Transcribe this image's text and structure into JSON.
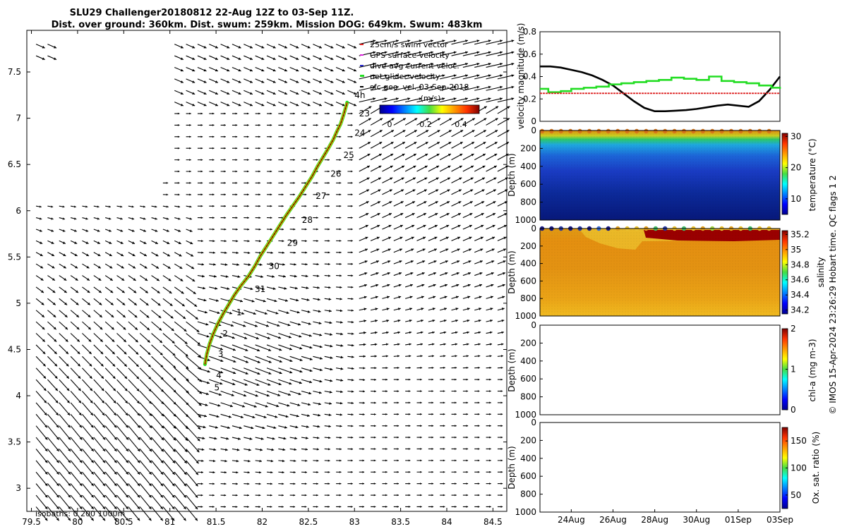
{
  "header": {
    "title_line1": "SLU29 Challenger20180812 22-Aug 12Z to 03-Sep 11Z.",
    "title_line2": "Dist. over ground: 360km. Dist. swum: 259km. Mission DOG: 649km. Swum: 483km"
  },
  "footer": {
    "credit": "© IMOS 15-Apr-2024 23:26:29 Hobart time. QC flags 1  2"
  },
  "colors": {
    "net_velocity": "#22dd22",
    "swim_vector": "#dd2222",
    "gps_velocity": "#dd22dd",
    "dive_avg": "#2222cc",
    "track": "#e68a00",
    "arrow": "#000000"
  },
  "chart_data": [
    {
      "id": "map",
      "type": "scatter",
      "subtype": "quiver-map",
      "title": "SLU29 Challenger20180812 22-Aug 12Z to 03-Sep 11Z.",
      "xlim": [
        79.45,
        84.65
      ],
      "ylim": [
        2.75,
        7.95
      ],
      "xticks": [
        79.5,
        80,
        80.5,
        81,
        81.5,
        82,
        82.5,
        83,
        83.5,
        84,
        84.5
      ],
      "xtick_labels": [
        "79.5",
        "80",
        "80.5",
        "81",
        "81.5",
        "82",
        "82.5",
        "83",
        "83.5",
        "84",
        "84.5"
      ],
      "yticks": [
        3,
        3.5,
        4,
        4.5,
        5,
        5.5,
        6,
        6.5,
        7,
        7.5
      ],
      "ytick_labels": [
        "3",
        "3.5",
        "4",
        "4.5",
        "5",
        "5.5",
        "6",
        "6.5",
        "7",
        "7.5"
      ],
      "legend": [
        {
          "label": "25cm/s swim vector",
          "color": "#dd2222"
        },
        {
          "label": "GPS surface velocity",
          "color": "#dd22dd"
        },
        {
          "label": "dive-avg current veloc.",
          "color": "#2222cc"
        },
        {
          "label": "net glider velocity",
          "color": "#22dd22"
        },
        {
          "label": "sfc geo. vel. 03-Sep-2018",
          "color": "#000000"
        }
      ],
      "colorbar": {
        "label": "(m/s)",
        "ticks": [
          "0",
          "0.2",
          "0.4"
        ],
        "range": [
          0,
          0.45
        ]
      },
      "isobath_label": "isobaths: 0   200  1000m",
      "track": {
        "lon": [
          81.38,
          81.4,
          81.43,
          81.47,
          81.52,
          81.58,
          81.64,
          81.7,
          81.77,
          81.85,
          81.92,
          81.98,
          82.05,
          82.12,
          82.19,
          82.26,
          82.33,
          82.4,
          82.47,
          82.54,
          82.6,
          82.66,
          82.72,
          82.77,
          82.81,
          82.85,
          82.88,
          82.9,
          82.92
        ],
        "lat": [
          4.34,
          4.45,
          4.56,
          4.67,
          4.78,
          4.89,
          4.99,
          5.09,
          5.19,
          5.29,
          5.4,
          5.51,
          5.62,
          5.73,
          5.84,
          5.95,
          6.05,
          6.15,
          6.26,
          6.37,
          6.48,
          6.58,
          6.68,
          6.77,
          6.86,
          6.94,
          7.03,
          7.1,
          7.17
        ]
      },
      "track_labels": [
        {
          "text": "4h",
          "lon": 83.0,
          "lat": 7.25
        },
        {
          "text": "23",
          "lon": 83.05,
          "lat": 7.05
        },
        {
          "text": "24",
          "lon": 83.0,
          "lat": 6.84
        },
        {
          "text": "25",
          "lon": 82.88,
          "lat": 6.6
        },
        {
          "text": "26",
          "lon": 82.74,
          "lat": 6.4
        },
        {
          "text": "27",
          "lon": 82.58,
          "lat": 6.16
        },
        {
          "text": "28",
          "lon": 82.43,
          "lat": 5.9
        },
        {
          "text": "29",
          "lon": 82.27,
          "lat": 5.65
        },
        {
          "text": "30",
          "lon": 82.07,
          "lat": 5.4
        },
        {
          "text": "31",
          "lon": 81.92,
          "lat": 5.15
        },
        {
          "text": "1",
          "lon": 81.72,
          "lat": 4.9
        },
        {
          "text": "2",
          "lon": 81.57,
          "lat": 4.67
        },
        {
          "text": "3",
          "lon": 81.52,
          "lat": 4.45
        },
        {
          "text": "4",
          "lon": 81.5,
          "lat": 4.22
        },
        {
          "text": "5",
          "lon": 81.48,
          "lat": 4.09
        }
      ]
    },
    {
      "id": "velocity",
      "type": "line",
      "ylabel": "velocity magnitude (m/s)",
      "xlim": [
        22.5,
        34.0
      ],
      "ylim": [
        0,
        0.8
      ],
      "yticks": [
        0,
        0.2,
        0.4,
        0.6,
        0.8
      ],
      "ytick_labels": [
        "0",
        "0.2",
        "0.4",
        "0.6",
        "0.8"
      ],
      "series": [
        {
          "name": "sfc geo. vel.",
          "color": "#000000",
          "x": [
            22.5,
            23.0,
            23.5,
            24.0,
            24.5,
            25.0,
            25.5,
            26.0,
            26.5,
            27.0,
            27.5,
            28.0,
            28.5,
            29.0,
            29.5,
            30.0,
            30.5,
            31.0,
            31.5,
            32.0,
            32.5,
            33.0,
            33.5,
            34.0
          ],
          "values": [
            0.49,
            0.49,
            0.48,
            0.46,
            0.44,
            0.41,
            0.37,
            0.32,
            0.25,
            0.18,
            0.12,
            0.09,
            0.09,
            0.095,
            0.1,
            0.11,
            0.125,
            0.14,
            0.15,
            0.14,
            0.13,
            0.18,
            0.28,
            0.4
          ]
        },
        {
          "name": "net glider velocity",
          "color": "#22dd22",
          "step": true,
          "x": [
            22.5,
            22.9,
            23.5,
            24.0,
            24.6,
            25.2,
            25.8,
            26.4,
            27.0,
            27.6,
            28.2,
            28.8,
            29.4,
            30.0,
            30.6,
            31.2,
            31.8,
            32.4,
            33.0,
            33.6,
            34.0
          ],
          "values": [
            0.29,
            0.26,
            0.27,
            0.29,
            0.3,
            0.31,
            0.33,
            0.34,
            0.35,
            0.36,
            0.37,
            0.39,
            0.38,
            0.37,
            0.4,
            0.36,
            0.35,
            0.34,
            0.32,
            0.3,
            0.29
          ]
        },
        {
          "name": "25cm/s swim vector",
          "color": "#dd2222",
          "x": [
            22.5,
            34.0
          ],
          "values": [
            0.25,
            0.25
          ]
        }
      ]
    },
    {
      "id": "temperature",
      "type": "heatmap",
      "ylabel": "Depth (m)",
      "colorbar_label": "temperature (°C)",
      "xlim": [
        22.5,
        34.0
      ],
      "ylim": [
        1000,
        0
      ],
      "yticks": [
        0,
        200,
        400,
        600,
        800,
        1000
      ],
      "ytick_labels": [
        "0",
        "200",
        "400",
        "600",
        "800",
        "1000"
      ],
      "cbar_ticks": [
        10,
        20,
        30
      ],
      "cbar_tick_labels": [
        "10",
        "20",
        "30"
      ],
      "cbar_range": [
        5,
        31
      ]
    },
    {
      "id": "salinity",
      "type": "heatmap",
      "ylabel": "Depth (m)",
      "colorbar_label": "salinity",
      "xlim": [
        22.5,
        34.0
      ],
      "ylim": [
        1000,
        0
      ],
      "yticks": [
        0,
        200,
        400,
        600,
        800,
        1000
      ],
      "ytick_labels": [
        "0",
        "200",
        "400",
        "600",
        "800",
        "1000"
      ],
      "cbar_ticks": [
        34.2,
        34.4,
        34.6,
        34.8,
        35,
        35.2
      ],
      "cbar_tick_labels": [
        "34.2",
        "34.4",
        "34.6",
        "34.8",
        "35",
        "35.2"
      ],
      "cbar_range": [
        34.15,
        35.25
      ]
    },
    {
      "id": "chla",
      "type": "heatmap",
      "ylabel": "Depth (m)",
      "colorbar_label": "chl-a (mg m-3)",
      "xlim": [
        22.5,
        34.0
      ],
      "ylim": [
        1000,
        0
      ],
      "yticks": [
        0,
        200,
        400,
        600,
        800,
        1000
      ],
      "ytick_labels": [
        "0",
        "200",
        "400",
        "600",
        "800",
        "1000"
      ],
      "cbar_ticks": [
        0,
        1,
        2
      ],
      "cbar_tick_labels": [
        "0",
        "1",
        "2"
      ],
      "cbar_range": [
        0,
        2
      ]
    },
    {
      "id": "oxsat",
      "type": "heatmap",
      "ylabel": "Depth (m)",
      "colorbar_label": "Ox. sat. ratio (%)",
      "xlim": [
        22.5,
        34.0
      ],
      "ylim": [
        1000,
        0
      ],
      "yticks": [
        0,
        200,
        400,
        600,
        800,
        1000
      ],
      "ytick_labels": [
        "0",
        "200",
        "400",
        "600",
        "800",
        "1000"
      ],
      "xticks": [
        24,
        26,
        28,
        30,
        32,
        34
      ],
      "xtick_labels": [
        "24Aug",
        "26Aug",
        "28Aug",
        "30Aug",
        "01Sep",
        "03Sep"
      ],
      "cbar_ticks": [
        50,
        100,
        150
      ],
      "cbar_tick_labels": [
        "50",
        "100",
        "150"
      ],
      "cbar_range": [
        25,
        175
      ]
    }
  ]
}
